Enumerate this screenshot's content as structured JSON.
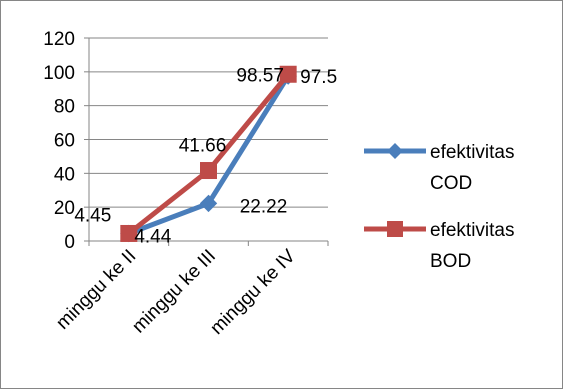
{
  "chart_data": {
    "type": "line",
    "categories": [
      "minggu ke II",
      "minggu ke III",
      "minggu ke IV"
    ],
    "ylim": [
      0,
      120
    ],
    "yticks": [
      0,
      20,
      40,
      60,
      80,
      100,
      120
    ],
    "grid": true,
    "legend_position": "right",
    "series": [
      {
        "name_lines": [
          "efektivitas",
          "COD"
        ],
        "values": [
          4.44,
          22.22,
          97.5
        ],
        "labels": [
          "4.44",
          "22.22",
          "97.5"
        ],
        "color": "#4a7ebb",
        "marker": "diamond"
      },
      {
        "name_lines": [
          "efektivitas",
          "BOD"
        ],
        "values": [
          4.45,
          41.66,
          98.57
        ],
        "labels": [
          "4.45",
          "41.66",
          "98.57"
        ],
        "color": "#be4b48",
        "marker": "square"
      }
    ]
  }
}
